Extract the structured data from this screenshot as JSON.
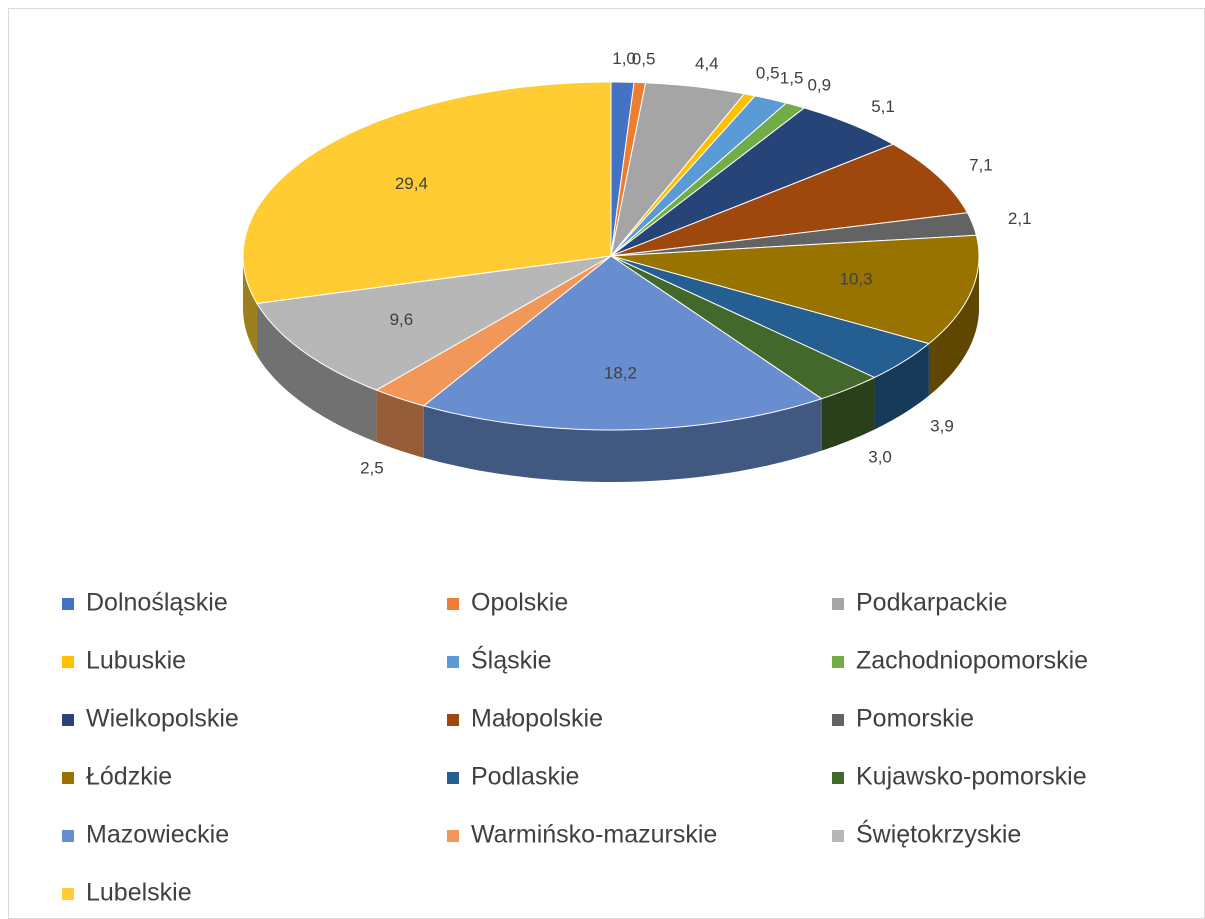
{
  "chart_data": {
    "type": "pie3d",
    "categories": [
      "Dolnośląskie",
      "Opolskie",
      "Podkarpackie",
      "Lubuskie",
      "Śląskie",
      "Zachodniopomorskie",
      "Wielkopolskie",
      "Małopolskie",
      "Pomorskie",
      "Łódzkie",
      "Podlaskie",
      "Kujawsko-pomorskie",
      "Mazowieckie",
      "Warmińsko-mazurskie",
      "Świętokrzyskie",
      "Lubelskie"
    ],
    "values": [
      1.0,
      0.5,
      4.4,
      0.5,
      1.5,
      0.9,
      5.1,
      7.1,
      2.1,
      10.3,
      3.9,
      3.0,
      18.2,
      2.5,
      9.6,
      29.4
    ],
    "value_labels": [
      "1,0",
      "0,5",
      "4,4",
      "0,5",
      "1,5",
      "0,9",
      "5,1",
      "7,1",
      "2,1",
      "10,3",
      "3,9",
      "3,0",
      "18,2",
      "2,5",
      "9,6",
      "29,4"
    ],
    "colors": [
      "#4472c4",
      "#ed7d31",
      "#a5a5a5",
      "#ffc000",
      "#5b9bd5",
      "#70ad47",
      "#264478",
      "#9e480e",
      "#636363",
      "#997300",
      "#255e91",
      "#43682b",
      "#698ed0",
      "#f1975a",
      "#b7b7b7",
      "#ffcd33"
    ],
    "legend": "bottom"
  }
}
